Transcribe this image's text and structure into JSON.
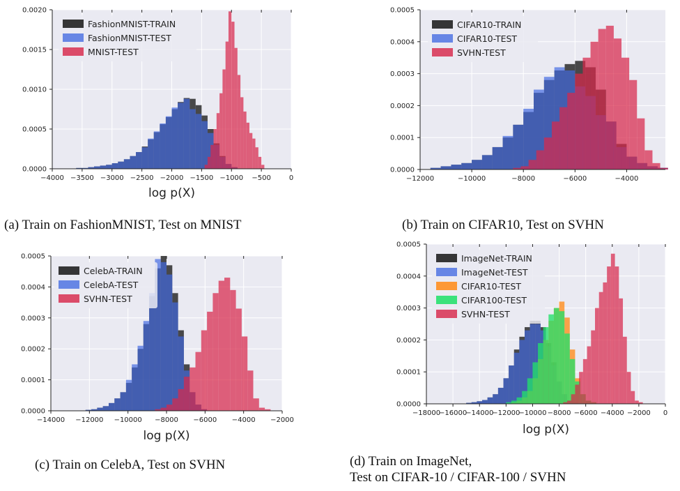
{
  "colors": {
    "train": "#2b2b2b",
    "test": "#4169e1",
    "cifar10": "#ff8c1a",
    "cifar100": "#22e06a",
    "svhn_mnist": "#d8284b",
    "background": "#eaeaf2",
    "grid": "#ffffff"
  },
  "chart_data": [
    {
      "type": "histogram",
      "xlabel": "log p(X)",
      "ylabel": "",
      "xlim": [
        -4000,
        0
      ],
      "ylim": [
        0,
        0.002
      ],
      "xticks": [
        -4000,
        -3500,
        -3000,
        -2500,
        -2000,
        -1500,
        -1000,
        -500,
        0
      ],
      "xtick_labels": [
        "−4000",
        "−3500",
        "−3000",
        "−2500",
        "−2000",
        "−1500",
        "−1000",
        "−500",
        "0"
      ],
      "yticks": [
        0,
        0.0005,
        0.001,
        0.0015,
        0.002
      ],
      "ytick_labels": [
        "0.0000",
        "0.0005",
        "0.0010",
        "0.0015",
        "0.0020"
      ],
      "grid": true,
      "legend_position": "top-left",
      "caption": "(a) Train on FashionMNIST, Test on MNIST",
      "series": [
        {
          "name": "FashionMNIST-TRAIN",
          "color_key": "train",
          "opacity": 0.85,
          "bins": {
            "start": -3600,
            "width": 100,
            "values": [
              1e-05,
              1e-05,
              2e-05,
              3e-05,
              4e-05,
              5e-05,
              7e-05,
              9e-05,
              0.00012,
              0.00016,
              0.00021,
              0.00028,
              0.00037,
              0.00046,
              0.00056,
              0.00065,
              0.00075,
              0.00084,
              0.00089,
              0.00088,
              0.0008,
              0.00067,
              0.0005,
              0.00032,
              0.00016,
              6e-05,
              2e-05
            ]
          }
        },
        {
          "name": "FashionMNIST-TEST",
          "color_key": "test",
          "opacity": 0.68,
          "bins": {
            "start": -3600,
            "width": 100,
            "values": [
              1e-05,
              1e-05,
              2e-05,
              3e-05,
              4e-05,
              5e-05,
              7e-05,
              9e-05,
              0.00012,
              0.00016,
              0.00021,
              0.00027,
              0.00038,
              0.00047,
              0.00057,
              0.00066,
              0.00077,
              0.00083,
              0.00088,
              0.00075,
              0.00069,
              0.0006,
              0.00045,
              0.0003,
              0.00015,
              6e-05,
              2e-05
            ]
          }
        },
        {
          "name": "MNIST-TEST",
          "color_key": "svhn_mnist",
          "opacity": 0.72,
          "bins": {
            "start": -1450,
            "width": 50,
            "values": [
              5e-05,
              0.00015,
              0.0003,
              0.0005,
              0.0007,
              0.00095,
              0.00125,
              0.0016,
              0.00198,
              0.00185,
              0.00152,
              0.00118,
              0.0009,
              0.00072,
              0.00058,
              0.00045,
              0.00038,
              0.00027,
              0.00015,
              5e-05
            ]
          }
        }
      ]
    },
    {
      "type": "histogram",
      "xlabel": "",
      "ylabel": "",
      "xlim": [
        -12000,
        -2500
      ],
      "ylim": [
        0,
        0.0005
      ],
      "xticks": [
        -12000,
        -10000,
        -8000,
        -6000,
        -4000
      ],
      "xtick_labels": [
        "−12000",
        "−10000",
        "−8000",
        "−6000",
        "−4000"
      ],
      "yticks": [
        0,
        0.0001,
        0.0002,
        0.0003,
        0.0004,
        0.0005
      ],
      "ytick_labels": [
        "0.0000",
        "0.0001",
        "0.0002",
        "0.0003",
        "0.0004",
        "0.0005"
      ],
      "grid": true,
      "legend_position": "top-left",
      "caption": "(b) Train on CIFAR10, Test on SVHN",
      "series": [
        {
          "name": "CIFAR10-TRAIN",
          "color_key": "train",
          "opacity": 0.85,
          "bins": {
            "start": -11600,
            "width": 400,
            "values": [
              5e-06,
              1e-05,
              1.5e-05,
              2e-05,
              3e-05,
              4.5e-05,
              7e-05,
              0.0001,
              0.00014,
              0.00018,
              0.00024,
              0.00028,
              0.00031,
              0.00033,
              0.00034,
              0.00032,
              0.00025,
              0.00015,
              8e-05,
              4e-05,
              2e-05,
              1e-05,
              5e-06
            ]
          }
        },
        {
          "name": "CIFAR10-TEST",
          "color_key": "test",
          "opacity": 0.68,
          "bins": {
            "start": -11600,
            "width": 400,
            "values": [
              5e-06,
              1e-05,
              1.5e-05,
              2e-05,
              3e-05,
              4.5e-05,
              7e-05,
              0.000105,
              0.00014,
              0.00019,
              0.00025,
              0.00029,
              0.00032,
              0.00031,
              0.00026,
              0.00023,
              0.00017,
              0.00015,
              7e-05,
              4e-05,
              2e-05,
              1e-05,
              5e-06
            ]
          }
        },
        {
          "name": "SVHN-TEST",
          "color_key": "svhn_mnist",
          "opacity": 0.72,
          "bins": {
            "start": -8400,
            "width": 300,
            "values": [
              5e-06,
              1e-05,
              3e-05,
              6e-05,
              0.0001,
              0.00015,
              0.000195,
              0.00024,
              0.0003,
              0.00035,
              0.0004,
              0.00044,
              0.00045,
              0.00041,
              0.00035,
              0.00028,
              0.00016,
              6e-05,
              2e-05,
              5e-06
            ]
          }
        }
      ]
    },
    {
      "type": "histogram",
      "xlabel": "log p(X)",
      "ylabel": "",
      "xlim": [
        -14000,
        -2000
      ],
      "ylim": [
        0,
        0.0005
      ],
      "xticks": [
        -14000,
        -12000,
        -10000,
        -8000,
        -6000,
        -4000,
        -2000
      ],
      "xtick_labels": [
        "−14000",
        "−12000",
        "−10000",
        "−8000",
        "−6000",
        "−4000",
        "−2000"
      ],
      "yticks": [
        0,
        0.0001,
        0.0002,
        0.0003,
        0.0004,
        0.0005
      ],
      "ytick_labels": [
        "0.0000",
        "0.0001",
        "0.0002",
        "0.0003",
        "0.0004",
        "0.0005"
      ],
      "grid": true,
      "legend_position": "top-left",
      "caption": "(c) Train on CelebA, Test on SVHN",
      "series": [
        {
          "name": "CelebA-TRAIN",
          "color_key": "train",
          "opacity": 0.85,
          "bins": {
            "start": -12200,
            "width": 300,
            "values": [
              3e-06,
              5e-06,
              1e-05,
              1.5e-05,
              2.5e-05,
              4e-05,
              6e-05,
              9e-05,
              0.00014,
              0.0002,
              0.00028,
              0.00037,
              0.00046,
              0.0005,
              0.00047,
              0.00038,
              0.00026,
              0.00015,
              6e-05,
              2e-05,
              5e-06
            ]
          }
        },
        {
          "name": "CelebA-TEST",
          "color_key": "test",
          "opacity": 0.68,
          "bins": {
            "start": -12200,
            "width": 300,
            "values": [
              3e-06,
              5e-06,
              1e-05,
              1.5e-05,
              2.5e-05,
              4e-05,
              6e-05,
              0.0001,
              0.00015,
              0.00021,
              0.00029,
              0.00038,
              0.00049,
              0.00048,
              0.00044,
              0.00035,
              0.00024,
              0.00013,
              6e-05,
              2e-05,
              5e-06
            ]
          }
        },
        {
          "name": "SVHN-TEST",
          "color_key": "svhn_mnist",
          "opacity": 0.72,
          "bins": {
            "start": -8600,
            "width": 300,
            "values": [
              5e-06,
              1e-05,
              2e-05,
              4e-05,
              7e-05,
              0.00011,
              0.00014,
              0.00019,
              0.00026,
              0.00032,
              0.00038,
              0.00042,
              0.00043,
              0.00039,
              0.00033,
              0.00024,
              0.00013,
              4e-05,
              1e-05,
              5e-06
            ]
          }
        }
      ]
    },
    {
      "type": "histogram",
      "xlabel": "log p(X)",
      "ylabel": "",
      "xlim": [
        -18000,
        0
      ],
      "ylim": [
        0,
        0.0005
      ],
      "xticks": [
        -18000,
        -16000,
        -14000,
        -12000,
        -10000,
        -8000,
        -6000,
        -4000,
        -2000,
        0
      ],
      "xtick_labels": [
        "−18000",
        "−16000",
        "−14000",
        "−12000",
        "−10000",
        "−8000",
        "−6000",
        "−4000",
        "−2000",
        "0"
      ],
      "yticks": [
        0,
        0.0001,
        0.0002,
        0.0003,
        0.0004,
        0.0005
      ],
      "ytick_labels": [
        "0.0000",
        "0.0001",
        "0.0002",
        "0.0003",
        "0.0004",
        "0.0005"
      ],
      "grid": true,
      "legend_position": "top-left",
      "caption_lines": [
        "(d) Train on ImageNet,",
        "Test on CIFAR-10 / CIFAR-100 / SVHN"
      ],
      "series": [
        {
          "name": "ImageNet-TRAIN",
          "color_key": "train",
          "opacity": 0.85,
          "bins": {
            "start": -15000,
            "width": 400,
            "values": [
              3e-06,
              5e-06,
              8e-06,
              1.2e-05,
              2e-05,
              3e-05,
              5e-05,
              8e-05,
              0.00012,
              0.00017,
              0.00021,
              0.00024,
              0.00026,
              0.00026,
              0.00024,
              0.00019,
              0.00013,
              7e-05,
              3e-05,
              1e-05,
              5e-06
            ]
          }
        },
        {
          "name": "ImageNet-TEST",
          "color_key": "test",
          "opacity": 0.68,
          "bins": {
            "start": -15000,
            "width": 400,
            "values": [
              3e-06,
              5e-06,
              8e-06,
              1.2e-05,
              2e-05,
              3e-05,
              5e-05,
              8e-05,
              0.00012,
              0.00016,
              0.0002,
              0.00023,
              0.00025,
              0.00025,
              0.00023,
              0.00018,
              0.00012,
              7e-05,
              3e-05,
              1e-05,
              5e-06
            ]
          }
        },
        {
          "name": "CIFAR10-TEST",
          "color_key": "cifar10",
          "opacity": 0.78,
          "bins": {
            "start": -11600,
            "width": 400,
            "values": [
              5e-06,
              1e-05,
              2e-05,
              4e-05,
              8e-05,
              0.00014,
              0.0002,
              0.00026,
              0.0003,
              0.00032,
              0.00027,
              0.00017,
              8e-05,
              3e-05,
              1e-05,
              5e-06
            ]
          }
        },
        {
          "name": "CIFAR100-TEST",
          "color_key": "cifar100",
          "opacity": 0.78,
          "bins": {
            "start": -12000,
            "width": 400,
            "values": [
              5e-06,
              1e-05,
              2e-05,
              4e-05,
              8e-05,
              0.00013,
              0.00019,
              0.00024,
              0.00028,
              0.0003,
              0.00029,
              0.00022,
              0.00014,
              7e-05,
              3e-05,
              1e-05,
              5e-06
            ]
          }
        },
        {
          "name": "SVHN-TEST",
          "color_key": "svhn_mnist",
          "opacity": 0.72,
          "bins": {
            "start": -7700,
            "width": 300,
            "values": [
              5e-06,
              1e-05,
              3e-05,
              6e-05,
              0.0001,
              0.00014,
              0.00018,
              0.00023,
              0.0003,
              0.00035,
              0.00038,
              0.00043,
              0.00047,
              0.00043,
              0.00033,
              0.00021,
              0.0001,
              4e-05,
              1e-05,
              5e-06
            ]
          }
        }
      ]
    }
  ]
}
